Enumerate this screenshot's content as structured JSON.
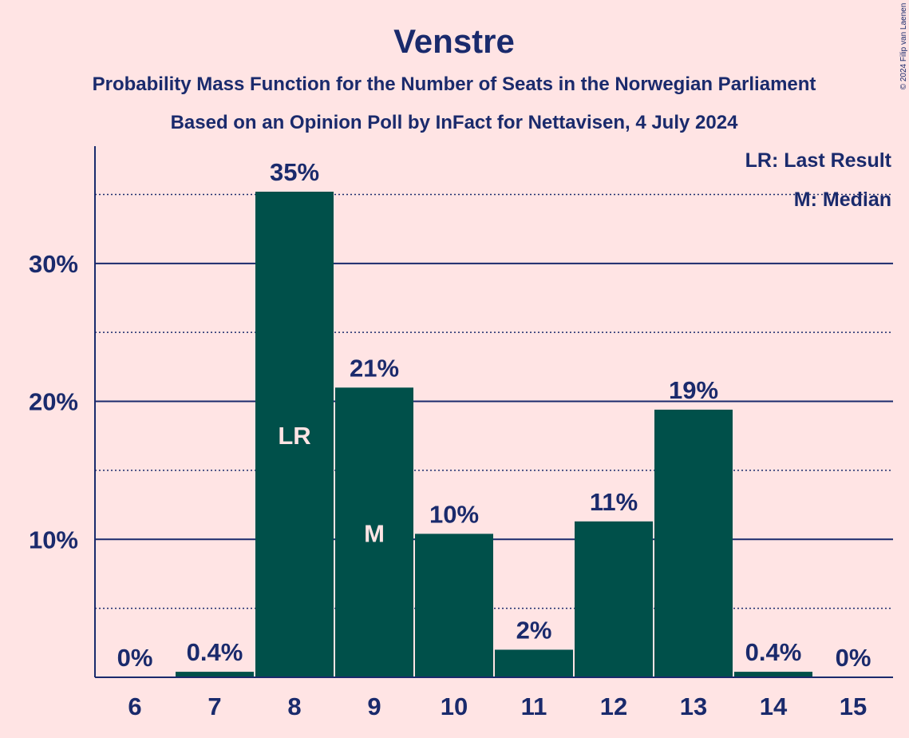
{
  "header": {
    "title": "Venstre",
    "subtitle1": "Probability Mass Function for the Number of Seats in the Norwegian Parliament",
    "subtitle2": "Based on an Opinion Poll by InFact for Nettavisen, 4 July 2024",
    "copyright": "© 2024 Filip van Laenen"
  },
  "legend": {
    "lr": "LR: Last Result",
    "m": "M: Median"
  },
  "colors": {
    "background": "#ffe4e4",
    "bar": "#00504a",
    "text": "#1a2a6c",
    "bar_label": "#ffe4e4"
  },
  "chart_data": {
    "type": "bar",
    "categories": [
      "6",
      "7",
      "8",
      "9",
      "10",
      "11",
      "12",
      "13",
      "14",
      "15"
    ],
    "values": [
      0,
      0.4,
      35.2,
      21,
      10.4,
      2,
      11.3,
      19.4,
      0.4,
      0
    ],
    "data_labels": [
      "0%",
      "0.4%",
      "35%",
      "21%",
      "10%",
      "2%",
      "11%",
      "19%",
      "0.4%",
      "0%"
    ],
    "inner_labels": [
      "",
      "",
      "LR",
      "M",
      "",
      "",
      "",
      "",
      "",
      ""
    ],
    "y_ticks": [
      10,
      20,
      30
    ],
    "y_tick_labels": [
      "10%",
      "20%",
      "30%"
    ],
    "y_minor_ticks": [
      5,
      15,
      25,
      35
    ],
    "ylim": [
      0,
      38.5
    ],
    "xlabel": "",
    "ylabel": "",
    "grid": true,
    "legend_position": "top-right"
  }
}
